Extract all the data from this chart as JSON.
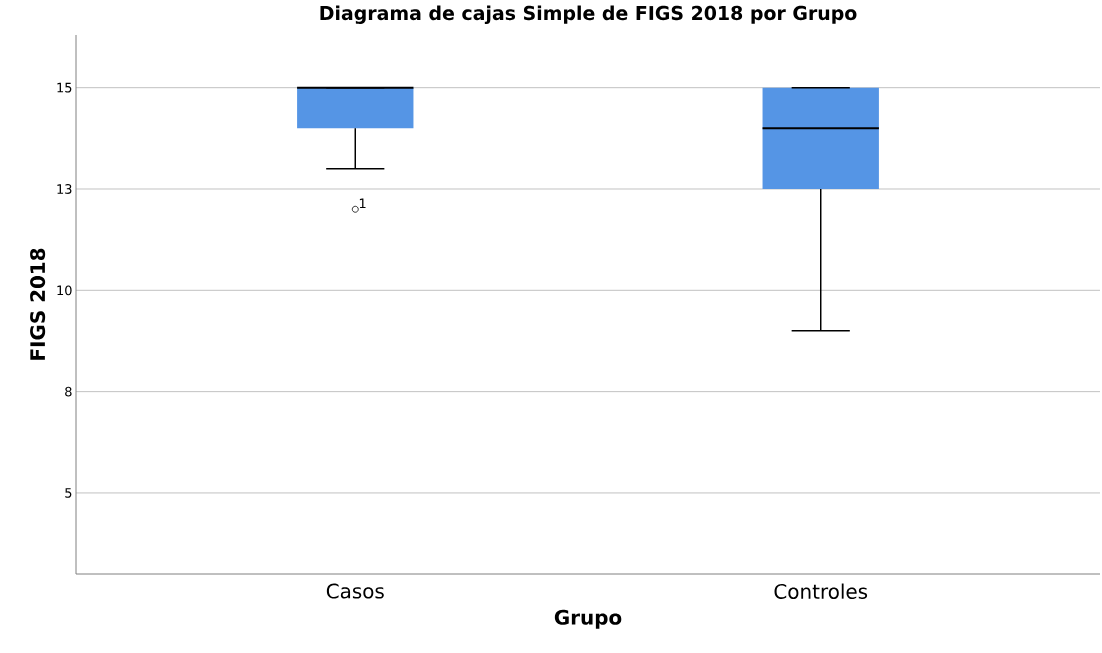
{
  "chart_data": {
    "type": "box",
    "title": "Diagrama de cajas Simple de FIGS 2018 por Grupo",
    "xlabel": "Grupo",
    "ylabel": "FIGS 2018",
    "categories": [
      "Casos",
      "Controles"
    ],
    "color": "#5595e5",
    "boxes": [
      {
        "low": 13,
        "q1": 14,
        "median": 15,
        "q3": 15,
        "high": 15,
        "outliers": [
          12
        ]
      },
      {
        "low": 9,
        "q1": 12.5,
        "median": 14,
        "q3": 15,
        "high": 15
      }
    ],
    "ylim": [
      3,
      16.3
    ],
    "yticks": [
      5,
      {
        "value": 7.5,
        "label": "8"
      },
      10,
      {
        "value": 12.5,
        "label": "13"
      },
      15
    ],
    "grid": "y",
    "annotations": [
      "1"
    ]
  }
}
